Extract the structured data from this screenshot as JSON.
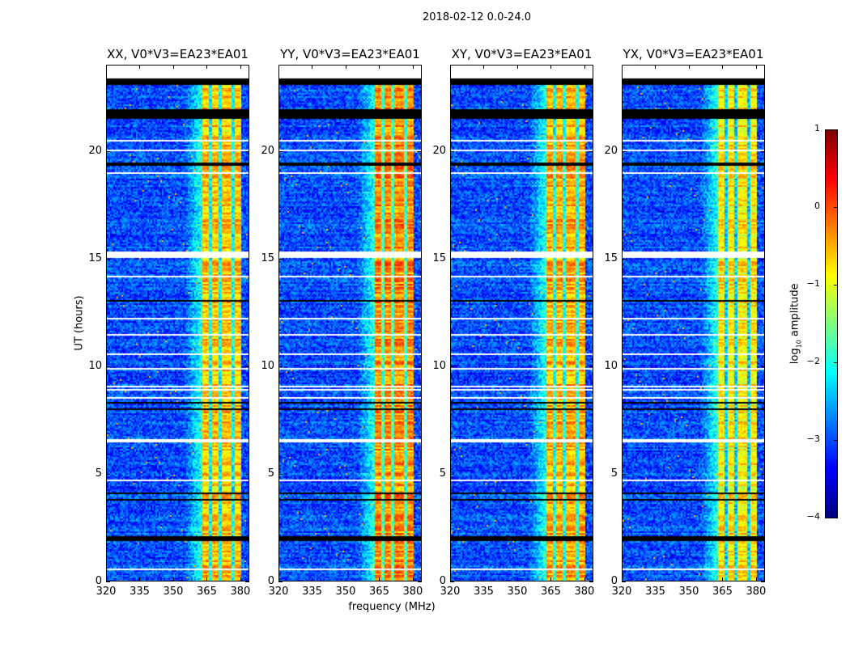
{
  "figure": {
    "suptitle": "2018-02-12 0.0-24.0",
    "xlabel": "frequency (MHz)",
    "ylabel": "UT (hours)",
    "colorbar_label_prefix": "log",
    "colorbar_label_sub": "10",
    "colorbar_label_suffix": " amplitude"
  },
  "chart_data": {
    "type": "heatmap",
    "title": "2018-02-12 0.0-24.0",
    "xlabel": "frequency (MHz)",
    "ylabel": "UT (hours)",
    "xlim": [
      320,
      384
    ],
    "ylim": [
      0,
      24
    ],
    "xticks": [
      320,
      335,
      350,
      365,
      380
    ],
    "yticks": [
      0,
      5,
      10,
      15,
      20
    ],
    "colormap": "jet",
    "colorbar": {
      "label": "log10 amplitude",
      "range": [
        -4,
        1
      ],
      "ticks": [
        1,
        0,
        -1,
        -2,
        -3,
        -4
      ],
      "tick_labels": [
        "1",
        "0",
        "−1",
        "−2",
        "−3",
        "−4"
      ]
    },
    "panels": [
      {
        "title": "XX, V0*V3=EA23*EA01",
        "band_level": -0.6,
        "background_level": -3.0
      },
      {
        "title": "YY, V0*V3=EA23*EA01",
        "band_level": -0.3,
        "background_level": -3.0
      },
      {
        "title": "XY, V0*V3=EA23*EA01",
        "band_level": -0.5,
        "background_level": -3.0
      },
      {
        "title": "YX, V0*V3=EA23*EA01",
        "band_level": -0.8,
        "background_level": -3.0
      }
    ],
    "rfi_band_mhz": [
      363,
      380
    ],
    "rfi_dark_channels_mhz": [
      366.5,
      371,
      376.5
    ],
    "flagged_black_hours": [
      [
        23.1,
        23.4
      ],
      [
        21.5,
        22.0
      ],
      [
        1.95,
        2.2
      ]
    ],
    "no_data_white_hours": [
      [
        23.4,
        24.0
      ],
      [
        15.1,
        15.35
      ],
      [
        6.5,
        6.7
      ]
    ]
  }
}
